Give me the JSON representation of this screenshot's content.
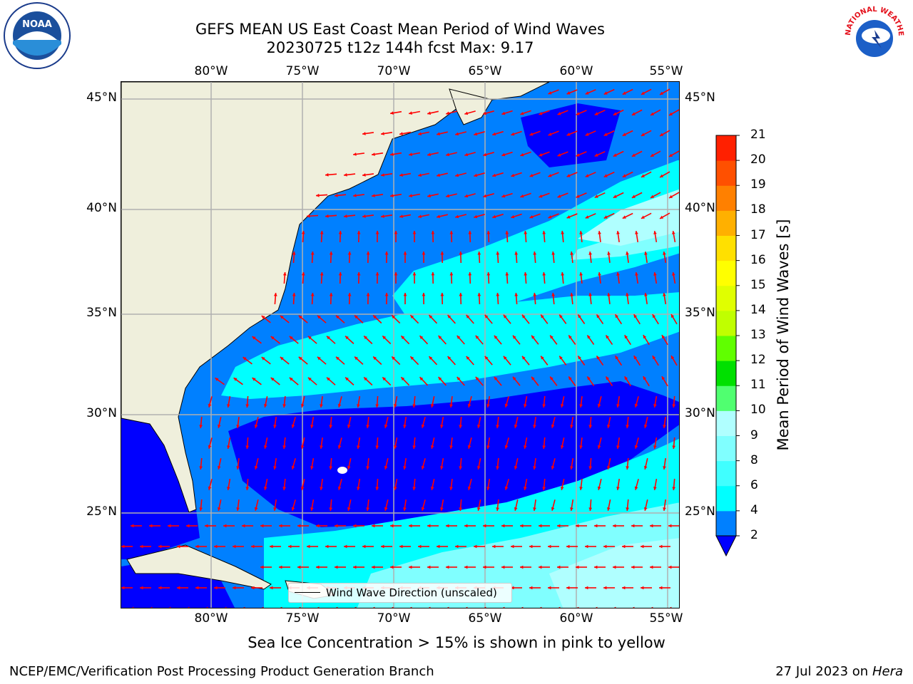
{
  "header": {
    "title_line1": "GEFS MEAN US East Coast Mean Period of Wind Waves",
    "title_line2": "20230725 t12z 144h fcst   Max: 9.17"
  },
  "map": {
    "lon_labels": [
      "80°W",
      "75°W",
      "70°W",
      "65°W",
      "60°W",
      "55°W"
    ],
    "lat_labels": [
      "45°N",
      "40°N",
      "35°N",
      "30°N",
      "25°N"
    ],
    "legend_label": "Wind Wave Direction (unscaled)",
    "colors": {
      "land": "#efefdc",
      "deep_blue": "#0000ff",
      "blue": "#0080ff",
      "cyan": "#00ffff",
      "light_cyan": "#80ffff",
      "pale_cyan": "#b0ffff",
      "arrow": "#ff0000",
      "grid": "#b0b0b0"
    }
  },
  "colorbar": {
    "label": "Mean Period of Wind Waves [s]",
    "ticks": [
      "2",
      "4",
      "6",
      "8",
      "9",
      "10",
      "11",
      "12",
      "13",
      "14",
      "15",
      "16",
      "17",
      "18",
      "19",
      "20",
      "21"
    ],
    "colors": [
      "#0080ff",
      "#00ffff",
      "#40ffff",
      "#80ffff",
      "#b0ffff",
      "#50ff70",
      "#00e000",
      "#60ff00",
      "#c0ff00",
      "#e0ff00",
      "#ffff00",
      "#ffe000",
      "#ffb000",
      "#ff8000",
      "#ff5000",
      "#ff2000",
      "#ff0000"
    ],
    "extend_color": "#0000ff"
  },
  "footer": {
    "note": "Sea Ice Concentration > 15% is shown in pink to yellow",
    "credit": "NCEP/EMC/Verification Post Processing Product Generation Branch",
    "date": "27 Jul 2023 on",
    "machine": "Hera"
  },
  "logos": {
    "noaa_text": "NOAA",
    "nws_text": "NATIONAL WEATHER SERVICE"
  }
}
